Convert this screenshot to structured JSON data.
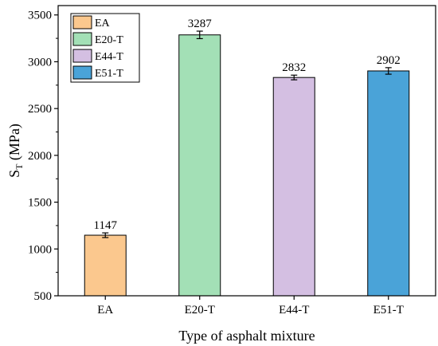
{
  "chart_data": {
    "type": "bar",
    "categories": [
      "EA",
      "E20-T",
      "E44-T",
      "E51-T"
    ],
    "values": [
      1147,
      3287,
      2832,
      2902
    ],
    "errors": [
      25,
      40,
      25,
      35
    ],
    "data_labels": [
      "1147",
      "3287",
      "2832",
      "2902"
    ],
    "colors": [
      "#fbc88e",
      "#a3e0b6",
      "#d4bfe2",
      "#4aa3d8"
    ],
    "legend": [
      "EA",
      "E20-T",
      "E44-T",
      "E51-T"
    ],
    "legend_position": "top-left",
    "xlabel": "Type of asphalt mixture",
    "ylabel_main": "S",
    "ylabel_sub": "T",
    "ylabel_unit": " (MPa)",
    "ylim": [
      500,
      3600
    ],
    "yticks": [
      500,
      1000,
      1500,
      2000,
      2500,
      3000,
      3500
    ],
    "grid": false
  }
}
